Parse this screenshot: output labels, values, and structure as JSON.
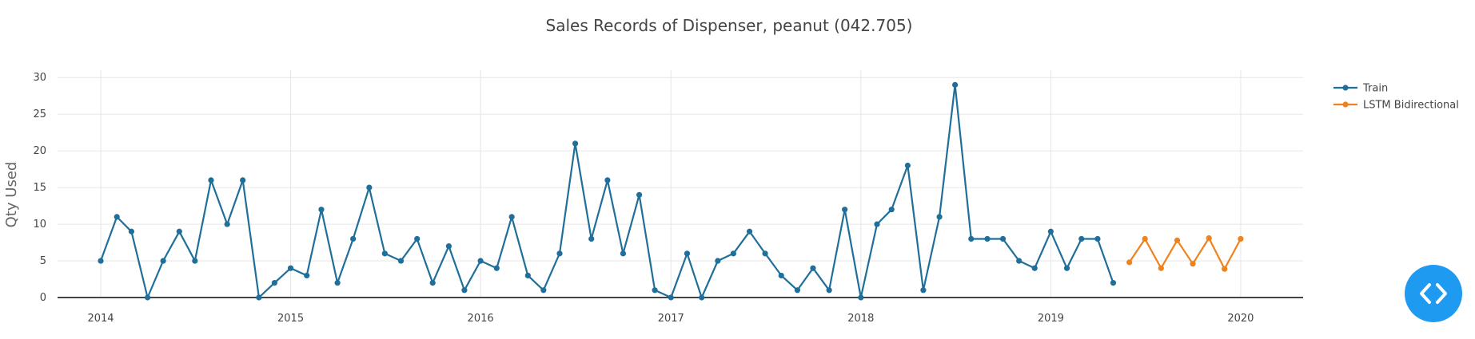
{
  "chart_data": {
    "type": "line",
    "title": "Sales Records of Dispenser, peanut  (042.705)",
    "xlabel": "",
    "ylabel": "Qty  Used",
    "ylim": [
      0,
      31
    ],
    "xlim": [
      "2013-10-10",
      "2020-04-30"
    ],
    "yticks": [
      0,
      5,
      10,
      15,
      20,
      25,
      30
    ],
    "xticks": [
      "2014",
      "2015",
      "2016",
      "2017",
      "2018",
      "2019",
      "2020"
    ],
    "grid": true,
    "legend_position": "top-right",
    "series": [
      {
        "name": "Train",
        "color": "#1f6f9a",
        "x": [
          "2014-01",
          "2014-02",
          "2014-03",
          "2014-04",
          "2014-05",
          "2014-06",
          "2014-07",
          "2014-08",
          "2014-09",
          "2014-10",
          "2014-11",
          "2014-12",
          "2015-01",
          "2015-02",
          "2015-03",
          "2015-04",
          "2015-05",
          "2015-06",
          "2015-07",
          "2015-08",
          "2015-09",
          "2015-10",
          "2015-11",
          "2015-12",
          "2016-01",
          "2016-02",
          "2016-03",
          "2016-04",
          "2016-05",
          "2016-06",
          "2016-07",
          "2016-08",
          "2016-09",
          "2016-10",
          "2016-11",
          "2016-12",
          "2017-01",
          "2017-02",
          "2017-03",
          "2017-04",
          "2017-05",
          "2017-06",
          "2017-07",
          "2017-08",
          "2017-09",
          "2017-10",
          "2017-11",
          "2017-12",
          "2018-01",
          "2018-02",
          "2018-03",
          "2018-04",
          "2018-05",
          "2018-06",
          "2018-07",
          "2018-08",
          "2018-09",
          "2018-10",
          "2018-11",
          "2018-12",
          "2019-01",
          "2019-02",
          "2019-03",
          "2019-04",
          "2019-05"
        ],
        "y": [
          5,
          11,
          9,
          0,
          5,
          9,
          5,
          16,
          10,
          16,
          0,
          2,
          4,
          3,
          12,
          2,
          8,
          15,
          6,
          5,
          8,
          2,
          7,
          1,
          5,
          4,
          11,
          3,
          1,
          6,
          21,
          8,
          16,
          6,
          14,
          1,
          0,
          6,
          0,
          5,
          6,
          9,
          6,
          3,
          1,
          4,
          1,
          12,
          0,
          10,
          12,
          18,
          1,
          11,
          29,
          8,
          8,
          8,
          5,
          4,
          9,
          4,
          8,
          8,
          2
        ]
      },
      {
        "name": "LSTM Bidirectional",
        "color": "#f0821e",
        "x": [
          "2019-06",
          "2019-07",
          "2019-08",
          "2019-09",
          "2019-10",
          "2019-11",
          "2019-12",
          "2020-01"
        ],
        "y": [
          4.8,
          8.0,
          4.0,
          7.8,
          4.6,
          8.1,
          3.9,
          8.0
        ]
      }
    ]
  },
  "ui": {
    "code_toggle_icon": "code-brackets-icon"
  }
}
